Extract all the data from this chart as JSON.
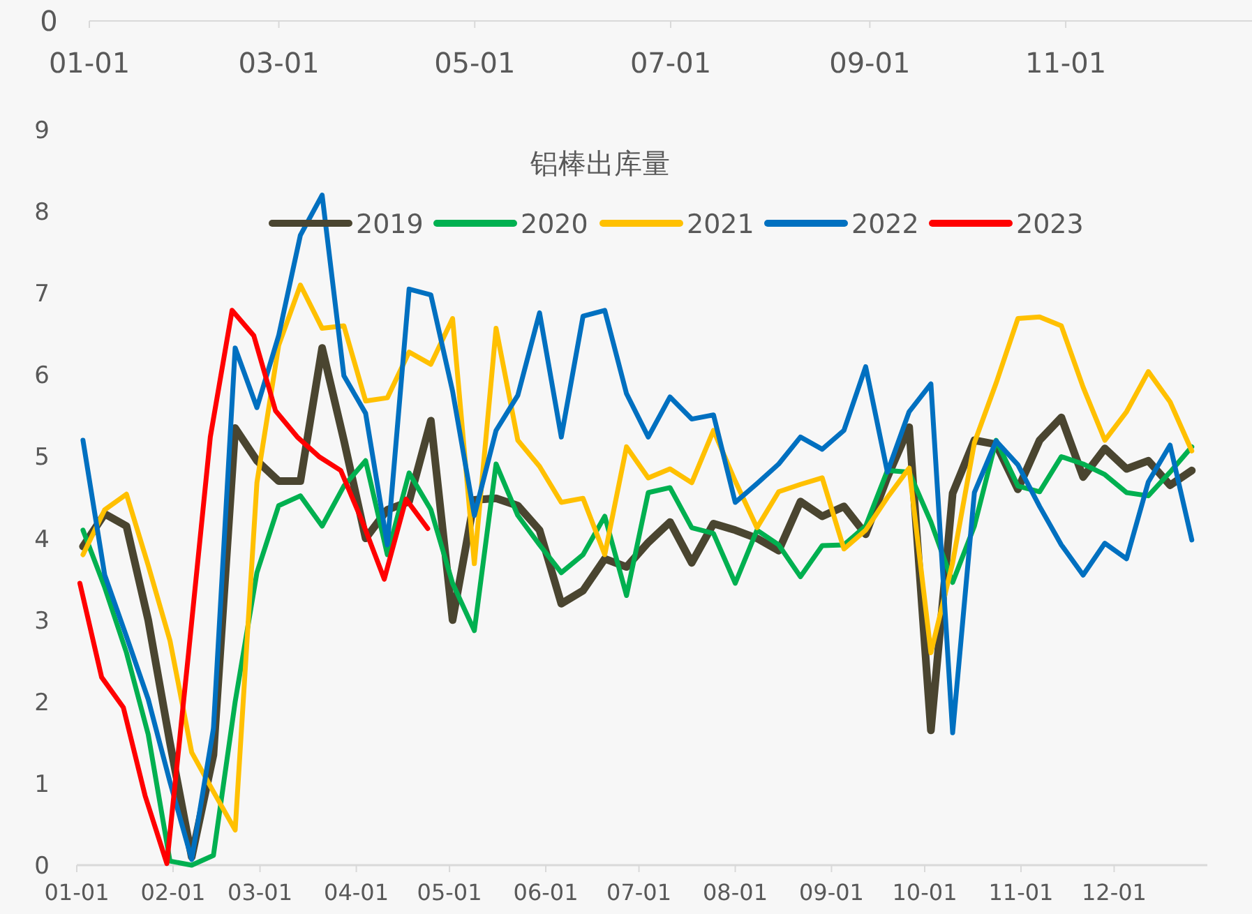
{
  "chart_data": {
    "type": "line",
    "title": "铝棒出库量",
    "annotations": [
      "0"
    ],
    "legend": "top",
    "grid": false,
    "line_style": "solid",
    "xlim": [
      "--01-01",
      "--12-31"
    ],
    "xticks": [
      {
        "value": "--01-01",
        "label": "01-01"
      },
      {
        "value": "--02-01",
        "label": "02-01"
      },
      {
        "value": "--03-01",
        "label": "03-01"
      },
      {
        "value": "--04-01",
        "label": "04-01"
      },
      {
        "value": "--05-01",
        "label": "05-01"
      },
      {
        "value": "--06-01",
        "label": "06-01"
      },
      {
        "value": "--07-01",
        "label": "07-01"
      },
      {
        "value": "--08-01",
        "label": "08-01"
      },
      {
        "value": "--09-01",
        "label": "09-01"
      },
      {
        "value": "--10-01",
        "label": "10-01"
      },
      {
        "value": "--11-01",
        "label": "11-01"
      },
      {
        "value": "--12-01",
        "label": "12-01"
      }
    ],
    "x2lim": [
      "--01-01",
      "--12-29"
    ],
    "x2ticks": [
      {
        "value": "--01-01",
        "label": "01-01"
      },
      {
        "value": "--03-01",
        "label": "03-01"
      },
      {
        "value": "--05-01",
        "label": "05-01"
      },
      {
        "value": "--07-01",
        "label": "07-01"
      },
      {
        "value": "--09-01",
        "label": "09-01"
      },
      {
        "value": "--11-01",
        "label": "11-01"
      }
    ],
    "ylim": [
      0,
      9
    ],
    "yticks": [
      0,
      1,
      2,
      3,
      4,
      5,
      6,
      7,
      8,
      9
    ],
    "x": [
      "--01-03",
      "--01-10",
      "--01-17",
      "--01-24",
      "--01-31",
      "--02-07",
      "--02-14",
      "--02-21",
      "--02-28",
      "--03-07",
      "--03-14",
      "--03-21",
      "--03-28",
      "--04-04",
      "--04-11",
      "--04-18",
      "--04-25",
      "--05-02",
      "--05-09",
      "--05-16",
      "--05-23",
      "--05-30",
      "--06-06",
      "--06-13",
      "--06-20",
      "--06-27",
      "--07-04",
      "--07-11",
      "--07-18",
      "--07-25",
      "--08-01",
      "--08-08",
      "--08-15",
      "--08-22",
      "--08-29",
      "--09-05",
      "--09-12",
      "--09-19",
      "--09-26",
      "--10-03",
      "--10-10",
      "--10-17",
      "--10-24",
      "--10-31",
      "--11-07",
      "--11-14",
      "--11-21",
      "--11-28",
      "--12-05",
      "--12-12",
      "--12-19",
      "--12-26"
    ],
    "series": [
      {
        "name": "2019",
        "color": "#4a4530",
        "values": [
          3.9,
          4.3,
          4.15,
          3.0,
          1.5,
          0.1,
          1.35,
          5.35,
          4.95,
          4.7,
          4.7,
          6.33,
          5.2,
          4.0,
          4.35,
          4.45,
          5.44,
          3.0,
          4.47,
          4.49,
          4.4,
          4.1,
          3.2,
          3.36,
          3.75,
          3.65,
          3.95,
          4.2,
          3.7,
          4.18,
          4.1,
          4.0,
          3.85,
          4.45,
          4.27,
          4.39,
          4.05,
          4.75,
          5.36,
          1.65,
          4.55,
          5.2,
          5.15,
          4.6,
          5.2,
          5.48,
          4.75,
          5.1,
          4.85,
          4.95,
          4.65,
          4.83
        ]
      },
      {
        "name": "2020",
        "color": "#00b050",
        "values": [
          4.1,
          3.4,
          2.6,
          1.6,
          0.05,
          0.0,
          0.12,
          2.0,
          3.58,
          4.4,
          4.52,
          4.15,
          4.64,
          4.95,
          3.8,
          4.8,
          4.35,
          3.45,
          2.87,
          4.91,
          4.28,
          3.92,
          3.58,
          3.8,
          4.27,
          3.3,
          4.56,
          4.62,
          4.13,
          4.06,
          3.45,
          4.1,
          3.92,
          3.53,
          3.91,
          3.92,
          4.15,
          4.83,
          4.81,
          4.2,
          3.46,
          4.15,
          5.2,
          4.64,
          4.57,
          5.0,
          4.91,
          4.78,
          4.56,
          4.52,
          4.81,
          5.12
        ]
      },
      {
        "name": "2021",
        "color": "#ffc000",
        "values": [
          3.8,
          4.35,
          4.54,
          3.67,
          2.75,
          1.38,
          0.9,
          0.43,
          4.68,
          6.36,
          7.1,
          6.57,
          6.6,
          5.68,
          5.72,
          6.28,
          6.13,
          6.69,
          3.69,
          6.57,
          5.2,
          4.88,
          4.44,
          4.49,
          3.8,
          5.12,
          4.74,
          4.85,
          4.68,
          5.32,
          4.7,
          4.13,
          4.57,
          4.66,
          4.74,
          3.87,
          4.1,
          4.5,
          4.86,
          2.6,
          3.7,
          5.17,
          5.9,
          6.69,
          6.71,
          6.6,
          5.85,
          5.2,
          5.55,
          6.04,
          5.67,
          5.07
        ]
      },
      {
        "name": "2022",
        "color": "#0070c0",
        "values": [
          5.2,
          3.55,
          2.8,
          2.03,
          1.02,
          0.07,
          1.67,
          6.33,
          5.6,
          6.48,
          7.71,
          8.2,
          5.99,
          5.53,
          3.92,
          7.05,
          6.98,
          5.8,
          4.28,
          5.32,
          5.75,
          6.76,
          5.24,
          6.72,
          6.79,
          5.77,
          5.24,
          5.73,
          5.46,
          5.51,
          4.44,
          4.67,
          4.91,
          5.24,
          5.09,
          5.32,
          6.1,
          4.81,
          5.55,
          5.89,
          1.62,
          4.56,
          5.19,
          4.9,
          4.39,
          3.92,
          3.55,
          3.94,
          3.75,
          4.69,
          5.14,
          3.98
        ]
      },
      {
        "name": "2023",
        "color": "#ff0000",
        "x": [
          "--01-02",
          "--01-09",
          "--01-16",
          "--01-23",
          "--01-30",
          "--02-06",
          "--02-13",
          "--02-20",
          "--02-27",
          "--03-06",
          "--03-13",
          "--03-20",
          "--03-27",
          "--04-03",
          "--04-10",
          "--04-17",
          "--04-24"
        ],
        "values": [
          3.45,
          2.3,
          1.93,
          0.85,
          0.02,
          2.6,
          5.24,
          6.79,
          6.48,
          5.56,
          5.24,
          5.0,
          4.83,
          4.2,
          3.5,
          4.48,
          4.12
        ]
      }
    ]
  }
}
